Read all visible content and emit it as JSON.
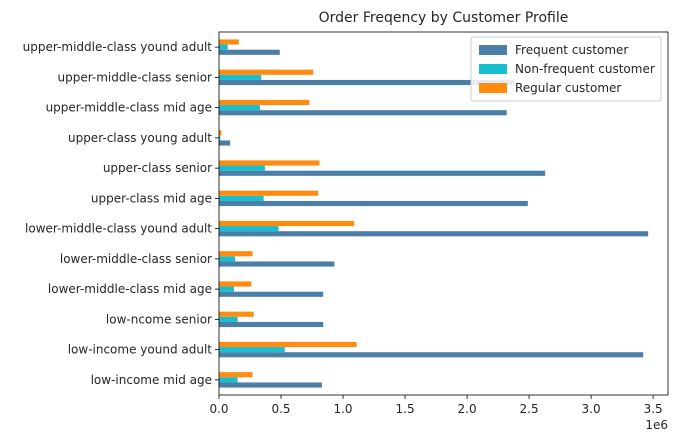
{
  "chart_data": {
    "type": "bar",
    "orientation": "horizontal",
    "title": "Order Freqency by Customer Profile",
    "xlabel": "",
    "ylabel": "",
    "x_scale_label": "1e6",
    "xlim": [
      0,
      3.62
    ],
    "x_ticks": [
      "0.0",
      "0.5",
      "1.0",
      "1.5",
      "2.0",
      "2.5",
      "3.0",
      "3.5"
    ],
    "x_tick_values": [
      0,
      0.5,
      1.0,
      1.5,
      2.0,
      2.5,
      3.0,
      3.5
    ],
    "grid": false,
    "legend_position": "top-right",
    "categories": [
      "low-income mid age",
      "low-income yound adult",
      "low-ncome senior",
      "lower-middle-class mid age",
      "lower-middle-class senior",
      "lower-middle-class yound adult",
      "upper-class mid age",
      "upper-class senior",
      "upper-class young adult",
      "upper-middle-class mid age",
      "upper-middle-class senior",
      "upper-middle-class yound adult"
    ],
    "series": [
      {
        "name": "Frequent customer",
        "color": "#4c7fa8",
        "values": [
          0.83,
          3.42,
          0.84,
          0.84,
          0.93,
          3.46,
          2.49,
          2.63,
          0.09,
          2.32,
          2.38,
          0.49
        ]
      },
      {
        "name": "Non-frequent customer",
        "color": "#17becf",
        "values": [
          0.15,
          0.53,
          0.15,
          0.12,
          0.13,
          0.48,
          0.36,
          0.37,
          0.01,
          0.33,
          0.34,
          0.07
        ]
      },
      {
        "name": "Regular customer",
        "color": "#ff8c0e",
        "values": [
          0.27,
          1.11,
          0.28,
          0.26,
          0.27,
          1.09,
          0.8,
          0.81,
          0.02,
          0.73,
          0.76,
          0.16
        ]
      }
    ]
  }
}
